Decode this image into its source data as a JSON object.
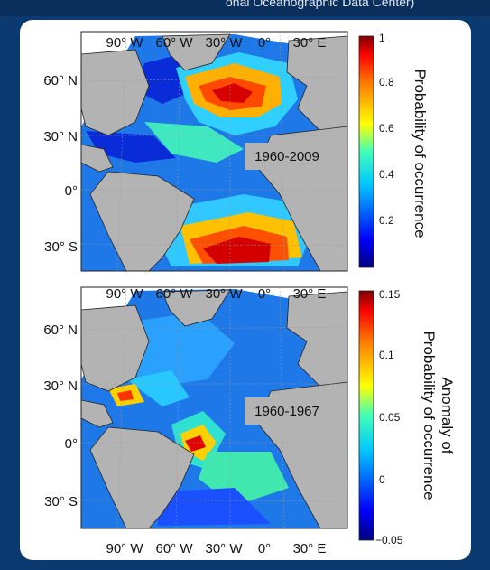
{
  "header": {
    "clipped_text": "onal Oceanographic Data Center)"
  },
  "panels": [
    {
      "period_label": "1960-2009",
      "lon_labels": [
        "90° W",
        "60° W",
        "30° W",
        "0°",
        "30° E"
      ],
      "lat_labels": [
        "60° N",
        "30° N",
        "0°",
        "30° S"
      ],
      "colorbar": {
        "title": "Probability of occurrence",
        "ticks": [
          "1",
          "0.8",
          "0.6",
          "0.4",
          "0.2"
        ],
        "range": [
          0,
          1
        ],
        "colormap": "jet"
      }
    },
    {
      "period_label": "1960-1967",
      "lon_labels": [
        "90° W",
        "60° W",
        "30° W",
        "0°",
        "30° E"
      ],
      "lat_labels": [
        "60° N",
        "30° N",
        "0°",
        "30° S"
      ],
      "colorbar": {
        "title_line1": "Anomaly of",
        "title_line2": "Probability of occurrence",
        "ticks": [
          "0.15",
          "0.1",
          "0.05",
          "0",
          "−0.05"
        ],
        "range": [
          -0.05,
          0.15
        ],
        "colormap": "jet"
      }
    }
  ],
  "colors": {
    "background": "#0b3a70",
    "card": "#ffffff",
    "land": "#b3b3b3",
    "ocean_default": "#1e78e8"
  }
}
